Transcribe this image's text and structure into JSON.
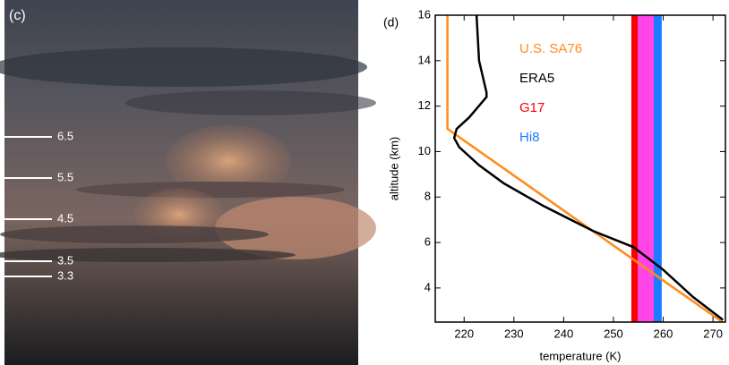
{
  "photo_panel": {
    "label": "(c)",
    "markers": [
      6.5,
      5.5,
      4.5,
      3.5,
      3.3
    ]
  },
  "chart_data": {
    "type": "line",
    "panel_label": "(d)",
    "x_label": "temperature (K)",
    "y_label": "altitude (km)",
    "xlim": [
      214.2,
      272.5
    ],
    "ylim": [
      2.5,
      16
    ],
    "xticks": [
      220,
      230,
      240,
      250,
      260,
      270
    ],
    "yticks": [
      4,
      6,
      8,
      10,
      12,
      14,
      16
    ],
    "series": [
      {
        "name": "U.S. SA76",
        "color": "#ff8c1a",
        "x": [
          271.9,
          216.65,
          216.65
        ],
        "y": [
          2.5,
          11,
          16
        ]
      },
      {
        "name": "ERA5",
        "color": "#000000",
        "x": [
          272,
          266,
          260,
          254,
          246,
          236,
          228,
          223,
          219,
          218,
          218.5,
          221,
          224.5,
          224.5,
          223,
          222.5
        ],
        "y": [
          2.6,
          3.6,
          4.8,
          5.8,
          6.5,
          7.6,
          8.6,
          9.4,
          10.2,
          10.6,
          11,
          11.5,
          12.4,
          12.6,
          14,
          16
        ]
      }
    ],
    "bands": [
      {
        "name": "G17",
        "color": "#ff0000",
        "range": [
          253.6,
          258.1
        ]
      },
      {
        "name": "Hi8",
        "color": "#1a7dff",
        "range": [
          254.9,
          259.7
        ]
      }
    ],
    "overlap_color": "#ff44e8"
  }
}
